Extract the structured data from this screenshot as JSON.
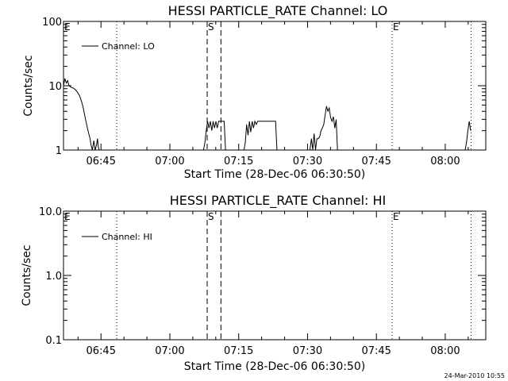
{
  "chart_data": [
    {
      "type": "line",
      "title": "HESSI PARTICLE_RATE Channel: LO",
      "xlabel": "Start Time (28-Dec-06 06:30:50)",
      "ylabel": "Counts/sec",
      "yscale": "log",
      "ylim": [
        1,
        100
      ],
      "yticks": [
        1,
        10,
        100
      ],
      "ytick_labels": [
        "1",
        "10",
        "100"
      ],
      "xlim_minutes": [
        6.0,
        98.0
      ],
      "xticks_minutes": [
        14.17,
        29.17,
        44.17,
        59.17,
        74.17,
        89.17
      ],
      "xtick_labels": [
        "06:45",
        "07:00",
        "07:15",
        "07:30",
        "07:45",
        "08:00"
      ],
      "grid": false,
      "legend": {
        "position": "top-left",
        "entries": [
          "Channel: LO"
        ]
      },
      "markers": [
        {
          "label": "E",
          "minute": 6.0,
          "style": "none"
        },
        {
          "label": "",
          "minute": 17.6,
          "style": "dotted"
        },
        {
          "label": "S",
          "minute": 37.3,
          "style": "dashed"
        },
        {
          "label": "",
          "minute": 40.3,
          "style": "dashed"
        },
        {
          "label": "E",
          "minute": 77.6,
          "style": "dotted"
        },
        {
          "label": "",
          "minute": 94.8,
          "style": "dotted"
        }
      ],
      "series": [
        {
          "name": "Channel: LO",
          "x_minutes": [
            6.0,
            6.3,
            6.6,
            6.9,
            7.2,
            7.6,
            8.0,
            8.5,
            9.0,
            9.5,
            10.0,
            10.3,
            10.6,
            10.9,
            11.2,
            11.5,
            11.8,
            12.0,
            12.3,
            12.6,
            12.9,
            13.2,
            13.4,
            13.6,
            13.8,
            14.0,
            36.5,
            36.8,
            37.1,
            37.4,
            37.7,
            38.0,
            38.3,
            38.6,
            38.9,
            39.2,
            39.5,
            39.8,
            40.1,
            40.4,
            40.7,
            41.0,
            41.3,
            45.0,
            45.3,
            45.6,
            45.9,
            46.2,
            46.5,
            46.8,
            47.1,
            47.4,
            47.7,
            48.0,
            48.3,
            48.6,
            48.9,
            49.2,
            49.5,
            49.8,
            50.1,
            50.4,
            50.7,
            51.0,
            51.3,
            51.6,
            51.9,
            52.2,
            52.5,
            52.8,
            53.1,
            53.4,
            53.7,
            54.0,
            54.3,
            54.6,
            54.9,
            55.2,
            55.5,
            55.8,
            56.1,
            56.4,
            56.7,
            57.0,
            57.3,
            57.6,
            57.9,
            58.2,
            58.5,
            58.8,
            59.1,
            59.4,
            59.7,
            60.0,
            60.3,
            60.6,
            60.9,
            61.2,
            61.5,
            61.8,
            62.1,
            62.4,
            62.7,
            63.0,
            63.3,
            63.6,
            63.9,
            64.2,
            64.5,
            64.8,
            65.1,
            65.4,
            65.7,
            93.5,
            93.8,
            94.1,
            94.4,
            94.7
          ],
          "y": [
            10,
            13,
            11,
            12,
            10,
            9.5,
            9.3,
            8.8,
            8.0,
            7.0,
            5.5,
            4.5,
            3.5,
            2.8,
            2.2,
            1.8,
            1.5,
            1.2,
            1.0,
            1.4,
            1.0,
            1.2,
            1.5,
            1.1,
            1.0,
            1.0,
            1.0,
            1.3,
            2.0,
            2.8,
            2.2,
            2.8,
            2.0,
            2.8,
            2.2,
            2.8,
            2.2,
            2.8,
            2.8,
            2.8,
            2.8,
            2.8,
            1.0,
            1.0,
            1.0,
            1.3,
            2.5,
            1.7,
            2.8,
            1.9,
            2.8,
            2.2,
            2.8,
            2.5,
            2.8,
            2.8,
            2.8,
            2.8,
            2.8,
            2.8,
            2.8,
            2.8,
            2.8,
            2.8,
            2.8,
            2.8,
            2.8,
            2.8,
            1.0,
            1.0,
            1.0,
            1.0,
            1.0,
            1.0,
            1.0,
            1.0,
            1.0,
            1.0,
            1.0,
            1.0,
            1.0,
            1.0,
            1.0,
            1.0,
            1.0,
            1.0,
            1.0,
            1.0,
            1.0,
            1.0,
            1.0,
            1.0,
            1.0,
            1.5,
            1.0,
            1.8,
            1.0,
            1.5,
            1.5,
            1.6,
            2.0,
            2.2,
            2.5,
            3.5,
            4.8,
            4.0,
            4.5,
            3.2,
            2.8,
            3.3,
            2.2,
            3.0,
            1.0,
            1.0,
            1.3,
            2.0,
            2.8,
            2.0
          ]
        }
      ]
    },
    {
      "type": "line",
      "title": "HESSI PARTICLE_RATE Channel: HI",
      "xlabel": "Start Time (28-Dec-06 06:30:50)",
      "ylabel": "Counts/sec",
      "yscale": "log",
      "ylim": [
        0.1,
        10.0
      ],
      "yticks": [
        0.1,
        1.0,
        10.0
      ],
      "ytick_labels": [
        "0.1",
        "1.0",
        "10.0"
      ],
      "xlim_minutes": [
        6.0,
        98.0
      ],
      "xticks_minutes": [
        14.17,
        29.17,
        44.17,
        59.17,
        74.17,
        89.17
      ],
      "xtick_labels": [
        "06:45",
        "07:00",
        "07:15",
        "07:30",
        "07:45",
        "08:00"
      ],
      "grid": false,
      "legend": {
        "position": "top-left",
        "entries": [
          "Channel: HI"
        ]
      },
      "markers": [
        {
          "label": "E",
          "minute": 6.0,
          "style": "none"
        },
        {
          "label": "",
          "minute": 17.6,
          "style": "dotted"
        },
        {
          "label": "S",
          "minute": 37.3,
          "style": "dashed"
        },
        {
          "label": "",
          "minute": 40.3,
          "style": "dashed"
        },
        {
          "label": "E",
          "minute": 77.6,
          "style": "dotted"
        },
        {
          "label": "",
          "minute": 94.8,
          "style": "dotted"
        }
      ],
      "series": [
        {
          "name": "Channel: HI",
          "x_minutes": [],
          "y": []
        }
      ]
    }
  ],
  "footer": {
    "timestamp": "24-Mar-2010 10:55"
  }
}
